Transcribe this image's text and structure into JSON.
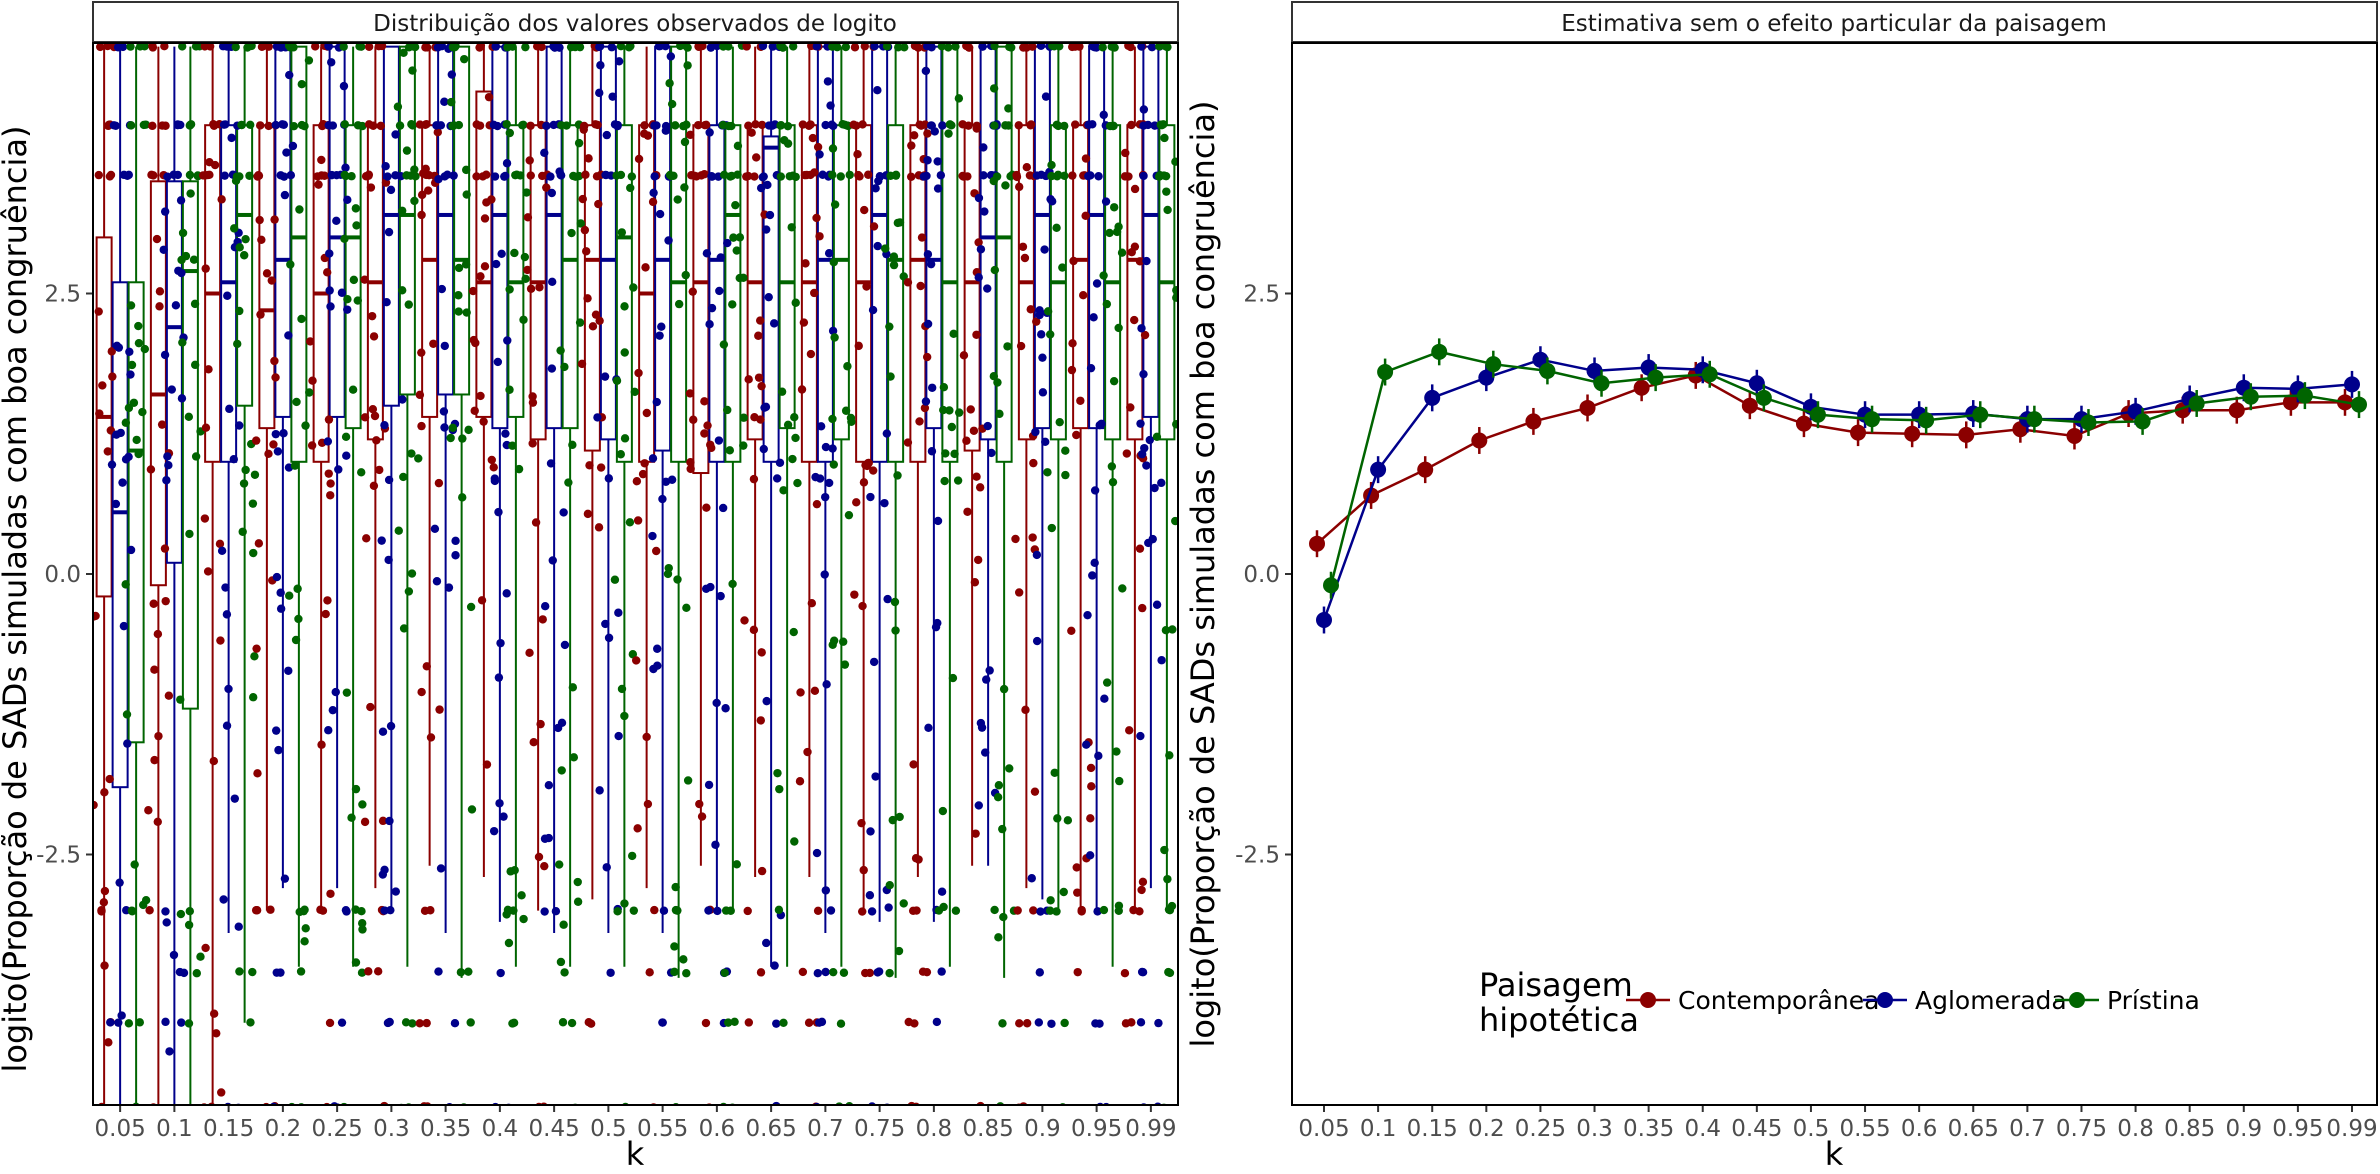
{
  "chart_data": [
    {
      "type": "box",
      "panel_title": "Distribuição dos valores observados de logito",
      "xlabel": "k",
      "ylabel": "logito(Proporção de SADs simuladas com boa congruência)",
      "categories": [
        "0.05",
        "0.1",
        "0.15",
        "0.2",
        "0.25",
        "0.3",
        "0.35",
        "0.4",
        "0.45",
        "0.5",
        "0.55",
        "0.6",
        "0.65",
        "0.7",
        "0.75",
        "0.8",
        "0.85",
        "0.9",
        "0.95",
        "0.99"
      ],
      "yticks": [
        -2.5,
        0.0,
        2.5
      ],
      "ytick_labels": [
        "-2.5",
        "0.0",
        "2.5"
      ],
      "ylim": [
        -4.75,
        4.7
      ],
      "grid": false,
      "series": [
        {
          "name": "Contemporânea",
          "color": "#8b0000",
          "q1": [
            -0.2,
            -0.1,
            1.0,
            1.3,
            1.0,
            1.2,
            1.4,
            1.4,
            1.2,
            1.1,
            1.0,
            0.9,
            1.2,
            1.0,
            1.0,
            1.0,
            1.1,
            1.2,
            1.3,
            1.2
          ],
          "median": [
            1.4,
            1.6,
            2.5,
            2.35,
            2.5,
            2.6,
            2.8,
            2.6,
            2.6,
            2.8,
            2.5,
            2.6,
            2.6,
            2.6,
            2.6,
            2.8,
            2.6,
            2.6,
            2.8,
            2.8
          ],
          "q3": [
            3.0,
            3.5,
            4.0,
            4.0,
            4.0,
            4.0,
            4.0,
            4.3,
            4.0,
            4.0,
            4.0,
            4.0,
            4.0,
            4.0,
            4.0,
            4.0,
            4.0,
            4.0,
            4.0,
            4.0
          ],
          "lo": [
            -4.75,
            -4.75,
            -4.75,
            -3.0,
            -3.0,
            -2.8,
            -2.6,
            -2.7,
            -3.0,
            -2.9,
            -2.8,
            -2.6,
            -2.7,
            -2.7,
            -3.0,
            -2.7,
            -2.6,
            -2.8,
            -3.0,
            -3.0
          ],
          "hi": [
            4.7,
            4.7,
            4.7,
            4.7,
            4.7,
            4.7,
            4.7,
            4.7,
            4.7,
            4.7,
            4.7,
            4.7,
            4.7,
            4.7,
            4.7,
            4.7,
            4.7,
            4.7,
            4.7,
            4.7
          ]
        },
        {
          "name": "Aglomerada",
          "color": "#00008b",
          "q1": [
            -1.9,
            0.1,
            1.0,
            1.4,
            1.4,
            1.5,
            1.6,
            1.3,
            1.3,
            1.2,
            1.1,
            1.0,
            1.0,
            1.0,
            1.0,
            1.3,
            1.2,
            1.3,
            1.3,
            1.4
          ],
          "median": [
            0.55,
            2.2,
            2.6,
            2.8,
            3.0,
            3.2,
            3.2,
            3.2,
            3.2,
            2.8,
            2.8,
            2.8,
            3.8,
            2.8,
            3.2,
            2.8,
            3.0,
            3.2,
            3.2,
            3.2
          ],
          "q3": [
            2.6,
            3.5,
            4.0,
            4.7,
            4.7,
            4.7,
            4.7,
            4.7,
            4.7,
            4.7,
            4.7,
            4.0,
            3.9,
            4.7,
            4.7,
            4.7,
            4.7,
            4.7,
            4.7,
            4.7
          ],
          "lo": [
            -4.75,
            -4.75,
            -3.2,
            -2.8,
            -2.8,
            -3.0,
            -3.2,
            -3.1,
            -3.2,
            -3.2,
            -3.2,
            -3.0,
            -3.5,
            -3.2,
            -3.1,
            -3.1,
            -2.6,
            -2.9,
            -3.0,
            -2.8
          ],
          "hi": [
            4.7,
            4.7,
            4.7,
            4.7,
            4.7,
            4.7,
            4.7,
            4.7,
            4.7,
            4.7,
            4.7,
            4.7,
            4.7,
            4.7,
            4.7,
            4.7,
            4.7,
            4.7,
            4.7,
            4.7
          ]
        },
        {
          "name": "Prístina",
          "color": "#006400",
          "q1": [
            -1.5,
            -1.2,
            1.5,
            1.0,
            1.3,
            1.6,
            1.6,
            1.4,
            1.3,
            1.0,
            1.0,
            1.0,
            1.3,
            1.2,
            1.0,
            1.0,
            1.0,
            1.2,
            1.2,
            1.2
          ],
          "median": [
            1.1,
            2.7,
            3.2,
            3.0,
            3.0,
            3.2,
            2.8,
            2.6,
            2.8,
            3.0,
            2.6,
            3.2,
            2.6,
            2.8,
            2.8,
            2.6,
            3.0,
            2.6,
            2.6,
            2.6
          ],
          "q3": [
            2.6,
            3.5,
            4.0,
            4.7,
            4.0,
            4.7,
            4.7,
            4.0,
            4.0,
            4.0,
            4.7,
            4.0,
            4.0,
            4.0,
            4.0,
            4.7,
            4.7,
            4.0,
            4.0,
            4.0
          ],
          "lo": [
            -4.75,
            -4.75,
            -4.0,
            -3.5,
            -3.5,
            -3.5,
            -3.6,
            -3.5,
            -3.5,
            -3.5,
            -3.6,
            -3.0,
            -3.5,
            -3.5,
            -3.6,
            -3.5,
            -3.6,
            -3.0,
            -3.5,
            -3.0
          ],
          "hi": [
            4.7,
            4.7,
            4.7,
            4.7,
            4.7,
            4.7,
            4.7,
            4.7,
            4.7,
            4.7,
            4.7,
            4.7,
            4.7,
            4.7,
            4.7,
            4.7,
            4.7,
            4.7,
            4.7,
            4.7
          ]
        }
      ],
      "jitter_note_levels": [
        4.7,
        4.0,
        3.55,
        -3.0,
        -3.55,
        -4.0,
        -4.75
      ]
    },
    {
      "type": "line",
      "panel_title": "Estimativa sem o efeito particular da paisagem",
      "xlabel": "k",
      "ylabel": "logito(Proporção de SADs simuladas com boa congruência)",
      "categories": [
        "0.05",
        "0.1",
        "0.15",
        "0.2",
        "0.25",
        "0.3",
        "0.35",
        "0.4",
        "0.45",
        "0.5",
        "0.55",
        "0.6",
        "0.65",
        "0.7",
        "0.75",
        "0.8",
        "0.85",
        "0.9",
        "0.95",
        "0.99"
      ],
      "yticks": [
        -2.5,
        0.0,
        2.5
      ],
      "ytick_labels": [
        "-2.5",
        "0.0",
        "2.5"
      ],
      "ylim": [
        -4.75,
        4.7
      ],
      "grid": false,
      "legend": {
        "title": "Paisagem\nhipotética",
        "position": "bottom-center"
      },
      "series": [
        {
          "name": "Contemporânea",
          "color": "#8b0000",
          "values": [
            0.27,
            0.7,
            0.93,
            1.19,
            1.36,
            1.48,
            1.66,
            1.77,
            1.5,
            1.34,
            1.26,
            1.25,
            1.24,
            1.29,
            1.23,
            1.43,
            1.46,
            1.46,
            1.53,
            1.53
          ],
          "err": [
            0.12,
            0.12,
            0.12,
            0.12,
            0.12,
            0.12,
            0.12,
            0.12,
            0.12,
            0.12,
            0.12,
            0.12,
            0.12,
            0.12,
            0.12,
            0.12,
            0.12,
            0.12,
            0.12,
            0.12
          ]
        },
        {
          "name": "Aglomerada",
          "color": "#00008b",
          "values": [
            -0.41,
            0.93,
            1.57,
            1.75,
            1.91,
            1.81,
            1.84,
            1.82,
            1.7,
            1.49,
            1.42,
            1.42,
            1.43,
            1.38,
            1.38,
            1.45,
            1.56,
            1.66,
            1.65,
            1.69
          ],
          "err": [
            0.12,
            0.12,
            0.12,
            0.12,
            0.12,
            0.12,
            0.12,
            0.12,
            0.12,
            0.12,
            0.12,
            0.12,
            0.12,
            0.12,
            0.12,
            0.12,
            0.12,
            0.12,
            0.12,
            0.12
          ]
        },
        {
          "name": "Prístina",
          "color": "#006400",
          "values": [
            -0.1,
            1.8,
            1.98,
            1.87,
            1.81,
            1.7,
            1.75,
            1.78,
            1.57,
            1.42,
            1.38,
            1.37,
            1.42,
            1.38,
            1.35,
            1.36,
            1.52,
            1.58,
            1.59,
            1.51
          ],
          "err": [
            0.12,
            0.12,
            0.12,
            0.12,
            0.12,
            0.12,
            0.12,
            0.12,
            0.12,
            0.12,
            0.12,
            0.12,
            0.12,
            0.12,
            0.12,
            0.12,
            0.12,
            0.12,
            0.12,
            0.12
          ]
        }
      ]
    }
  ]
}
